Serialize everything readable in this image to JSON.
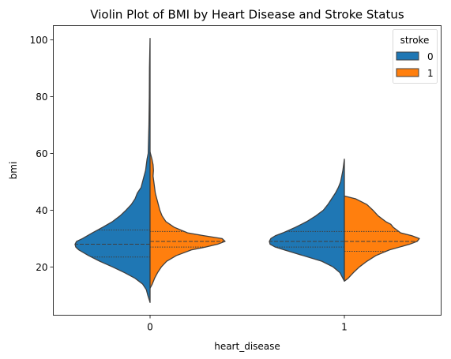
{
  "chart_data": {
    "type": "violin",
    "title": "Violin Plot of BMI by Heart Disease and Stroke Status",
    "xlabel": "heart_disease",
    "ylabel": "bmi",
    "categories": [
      "0",
      "1"
    ],
    "ylim": [
      3,
      105
    ],
    "yticks": [
      20,
      40,
      60,
      80,
      100
    ],
    "split": true,
    "inner": "quartile",
    "legend": {
      "title": "stroke",
      "placement": "top-right"
    },
    "series": [
      {
        "name": "0",
        "color": "#1f77b4",
        "side": "left",
        "groups": [
          {
            "category": "0",
            "min": 7.5,
            "max": 100.5,
            "quartiles": [
              23.5,
              28.0,
              33.0
            ],
            "profile": [
              [
                7.5,
                0.0
              ],
              [
                10,
                0.03
              ],
              [
                12,
                0.05
              ],
              [
                14,
                0.1
              ],
              [
                16,
                0.2
              ],
              [
                18,
                0.34
              ],
              [
                20,
                0.5
              ],
              [
                22,
                0.67
              ],
              [
                24,
                0.82
              ],
              [
                26,
                0.95
              ],
              [
                27,
                0.99
              ],
              [
                28,
                1.0
              ],
              [
                29,
                0.98
              ],
              [
                30,
                0.9
              ],
              [
                32,
                0.77
              ],
              [
                34,
                0.63
              ],
              [
                36,
                0.5
              ],
              [
                38,
                0.4
              ],
              [
                40,
                0.32
              ],
              [
                42,
                0.25
              ],
              [
                44,
                0.2
              ],
              [
                46,
                0.17
              ],
              [
                48,
                0.12
              ],
              [
                50,
                0.1
              ],
              [
                52,
                0.08
              ],
              [
                54,
                0.06
              ],
              [
                56,
                0.05
              ],
              [
                58,
                0.04
              ],
              [
                60,
                0.025
              ],
              [
                65,
                0.02
              ],
              [
                70,
                0.015
              ],
              [
                80,
                0.01
              ],
              [
                90,
                0.008
              ],
              [
                100.5,
                0.0
              ]
            ]
          },
          {
            "category": "1",
            "min": 15.0,
            "max": 58.0,
            "quartiles": [
              27.0,
              29.0,
              32.5
            ],
            "profile": [
              [
                15,
                0.0
              ],
              [
                16,
                0.02
              ],
              [
                18,
                0.06
              ],
              [
                20,
                0.15
              ],
              [
                22,
                0.3
              ],
              [
                24,
                0.55
              ],
              [
                26,
                0.8
              ],
              [
                27,
                0.92
              ],
              [
                28,
                0.99
              ],
              [
                29,
                1.0
              ],
              [
                30,
                0.98
              ],
              [
                31,
                0.92
              ],
              [
                32,
                0.82
              ],
              [
                34,
                0.65
              ],
              [
                36,
                0.5
              ],
              [
                38,
                0.38
              ],
              [
                40,
                0.28
              ],
              [
                42,
                0.22
              ],
              [
                44,
                0.17
              ],
              [
                46,
                0.12
              ],
              [
                48,
                0.08
              ],
              [
                50,
                0.05
              ],
              [
                52,
                0.035
              ],
              [
                54,
                0.02
              ],
              [
                56,
                0.01
              ],
              [
                58,
                0.0
              ]
            ]
          }
        ]
      },
      {
        "name": "1",
        "color": "#ff7f0e",
        "side": "right",
        "groups": [
          {
            "category": "0",
            "min": 12.5,
            "max": 60.5,
            "quartiles": [
              27.0,
              29.0,
              32.5
            ],
            "profile": [
              [
                12.5,
                0.0
              ],
              [
                14,
                0.03
              ],
              [
                16,
                0.06
              ],
              [
                18,
                0.1
              ],
              [
                20,
                0.15
              ],
              [
                22,
                0.22
              ],
              [
                24,
                0.35
              ],
              [
                26,
                0.55
              ],
              [
                27,
                0.74
              ],
              [
                28,
                0.9
              ],
              [
                29,
                1.0
              ],
              [
                30,
                0.96
              ],
              [
                31,
                0.72
              ],
              [
                32,
                0.5
              ],
              [
                34,
                0.32
              ],
              [
                36,
                0.21
              ],
              [
                38,
                0.16
              ],
              [
                40,
                0.13
              ],
              [
                42,
                0.11
              ],
              [
                44,
                0.09
              ],
              [
                46,
                0.07
              ],
              [
                48,
                0.06
              ],
              [
                50,
                0.05
              ],
              [
                52,
                0.04
              ],
              [
                54,
                0.045
              ],
              [
                56,
                0.04
              ],
              [
                58,
                0.025
              ],
              [
                60.5,
                0.0
              ]
            ]
          },
          {
            "category": "1",
            "min": 15.0,
            "max": 45.0,
            "quartiles": [
              25.5,
              29.0,
              32.5
            ],
            "profile": [
              [
                15,
                0.0
              ],
              [
                16,
                0.05
              ],
              [
                18,
                0.12
              ],
              [
                20,
                0.2
              ],
              [
                22,
                0.3
              ],
              [
                24,
                0.42
              ],
              [
                26,
                0.6
              ],
              [
                28,
                0.87
              ],
              [
                29,
                0.97
              ],
              [
                30,
                1.0
              ],
              [
                31,
                0.9
              ],
              [
                32,
                0.75
              ],
              [
                34,
                0.65
              ],
              [
                35,
                0.62
              ],
              [
                36,
                0.55
              ],
              [
                38,
                0.45
              ],
              [
                40,
                0.38
              ],
              [
                42,
                0.3
              ],
              [
                44,
                0.15
              ],
              [
                45,
                0.0
              ]
            ]
          }
        ]
      }
    ]
  }
}
